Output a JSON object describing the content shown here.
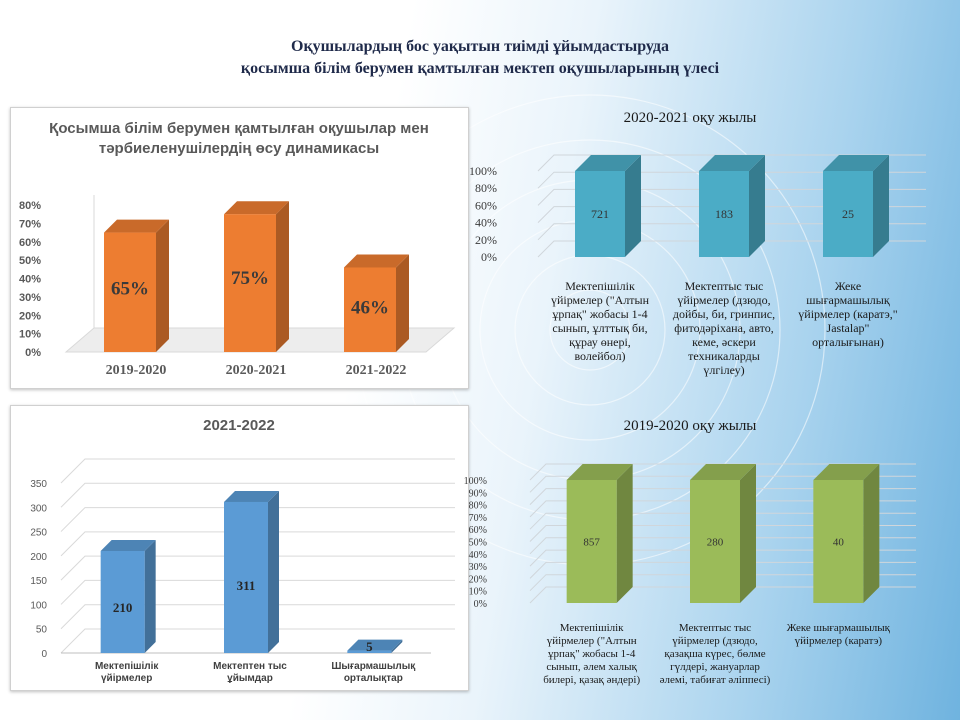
{
  "main_title": {
    "line1": "Оқушылардың бос уақытын тиімді ұйымдастыруда",
    "line2": "қосымша білім берумен қамтылған мектеп оқушыларының үлесі"
  },
  "chart_data": [
    {
      "type": "bar",
      "title": "Қосымша білім берумен қамтылған оқушылар мен тәрбиеленушілердің өсу динамикасы",
      "title_line1": "Қосымша білім берумен қамтылған оқушылар мен",
      "title_line2": "тәрбиеленушілердің өсу динамикасы",
      "categories": [
        "2019-2020",
        "2020-2021",
        "2021-2022"
      ],
      "values": [
        65,
        75,
        46
      ],
      "data_labels": [
        "65%",
        "75%",
        "46%"
      ],
      "ylim": [
        0,
        80
      ],
      "y_ticks": [
        "0%",
        "10%",
        "20%",
        "30%",
        "40%",
        "50%",
        "60%",
        "70%",
        "80%"
      ],
      "grid": false,
      "color": "#ed7d31"
    },
    {
      "type": "bar",
      "title": "2021-2022",
      "categories": [
        "Мектепішілік үйірмелер",
        "Мектептен тыс ұйымдар",
        "Шығармашылық орталықтар"
      ],
      "category_lines": [
        [
          "Мектепішілік",
          "үйірмелер"
        ],
        [
          "Мектептен тыс",
          "ұйымдар"
        ],
        [
          "Шығармашылық",
          "орталықтар"
        ]
      ],
      "values": [
        210,
        311,
        5
      ],
      "data_labels": [
        "210",
        "311",
        "5"
      ],
      "ylim": [
        0,
        350
      ],
      "y_ticks": [
        "0",
        "50",
        "100",
        "150",
        "200",
        "250",
        "300",
        "350"
      ],
      "grid": true,
      "color": "#5b9bd5"
    },
    {
      "type": "bar",
      "title": "2020-2021 оқу жылы",
      "categories": [
        "Мектепішілік үйірмелер (\"Алтын ұрпақ\" жобасы 1-4 сынып, ұлттық би, құрау өнері, волейбол)",
        "Мектептыс тыс үйірмелер (дзюдо, дойбы, би, гринпис, фитодәріхана, авто, кеме, әскери техникаларды үлгілеу)",
        "Жеке шығармашылық үйірмелер (каратэ,\" Jastalap\" орталығынан)"
      ],
      "category_lines": [
        [
          "Мектепішілік",
          "үйірмелер (\"Алтын",
          "ұрпақ\" жобасы 1-4",
          "сынып, ұлттық би,",
          "құрау өнері,",
          "волейбол)"
        ],
        [
          "Мектептыс тыс",
          "үйірмелер (дзюдо,",
          "дойбы, би, гринпис,",
          "фитодәріхана, авто,",
          "кеме, әскери",
          "техникаларды",
          "үлгілеу)"
        ],
        [
          "Жеке",
          "шығармашылық",
          "үйірмелер (каратэ,\"",
          "Jastalap\"",
          "орталығынан)"
        ]
      ],
      "values": [
        721,
        183,
        25
      ],
      "data_labels": [
        "721",
        "183",
        "25"
      ],
      "y_ticks": [
        "0%",
        "20%",
        "40%",
        "60%",
        "80%",
        "100%"
      ],
      "grid": true,
      "color": "#4bacc6"
    },
    {
      "type": "bar",
      "title": "2019-2020 оқу жылы",
      "categories": [
        "Мектепішілік үйірмелер (\"Алтын ұрпақ\" жобасы 1-4 сынып, әлем халық билері, қазақ әндері)",
        "Мектептыс тыс үйірмелер (дзюдо, қазақша күрес, бөлме гүлдері, жануарлар әлемі, табиғат әліппесі)",
        "Жеке шығармашылық үйірмелер (каратэ)"
      ],
      "category_lines": [
        [
          "Мектепішілік",
          "үйірмелер (\"Алтын",
          "ұрпақ\" жобасы 1-4",
          "сынып, әлем халық",
          "билері, қазақ әндері)"
        ],
        [
          "Мектептыс тыс",
          "үйірмелер (дзюдо,",
          "қазақша күрес, бөлме",
          "гүлдері, жануарлар",
          "әлемі, табиғат әліппесі)"
        ],
        [
          "Жеке шығармашылық",
          "үйірмелер (каратэ)"
        ]
      ],
      "values": [
        857,
        280,
        40
      ],
      "data_labels": [
        "857",
        "280",
        "40"
      ],
      "y_ticks": [
        "0%",
        "10%",
        "20%",
        "30%",
        "40%",
        "50%",
        "60%",
        "70%",
        "80%",
        "90%",
        "100%"
      ],
      "grid": true,
      "color": "#9bbb59"
    }
  ]
}
